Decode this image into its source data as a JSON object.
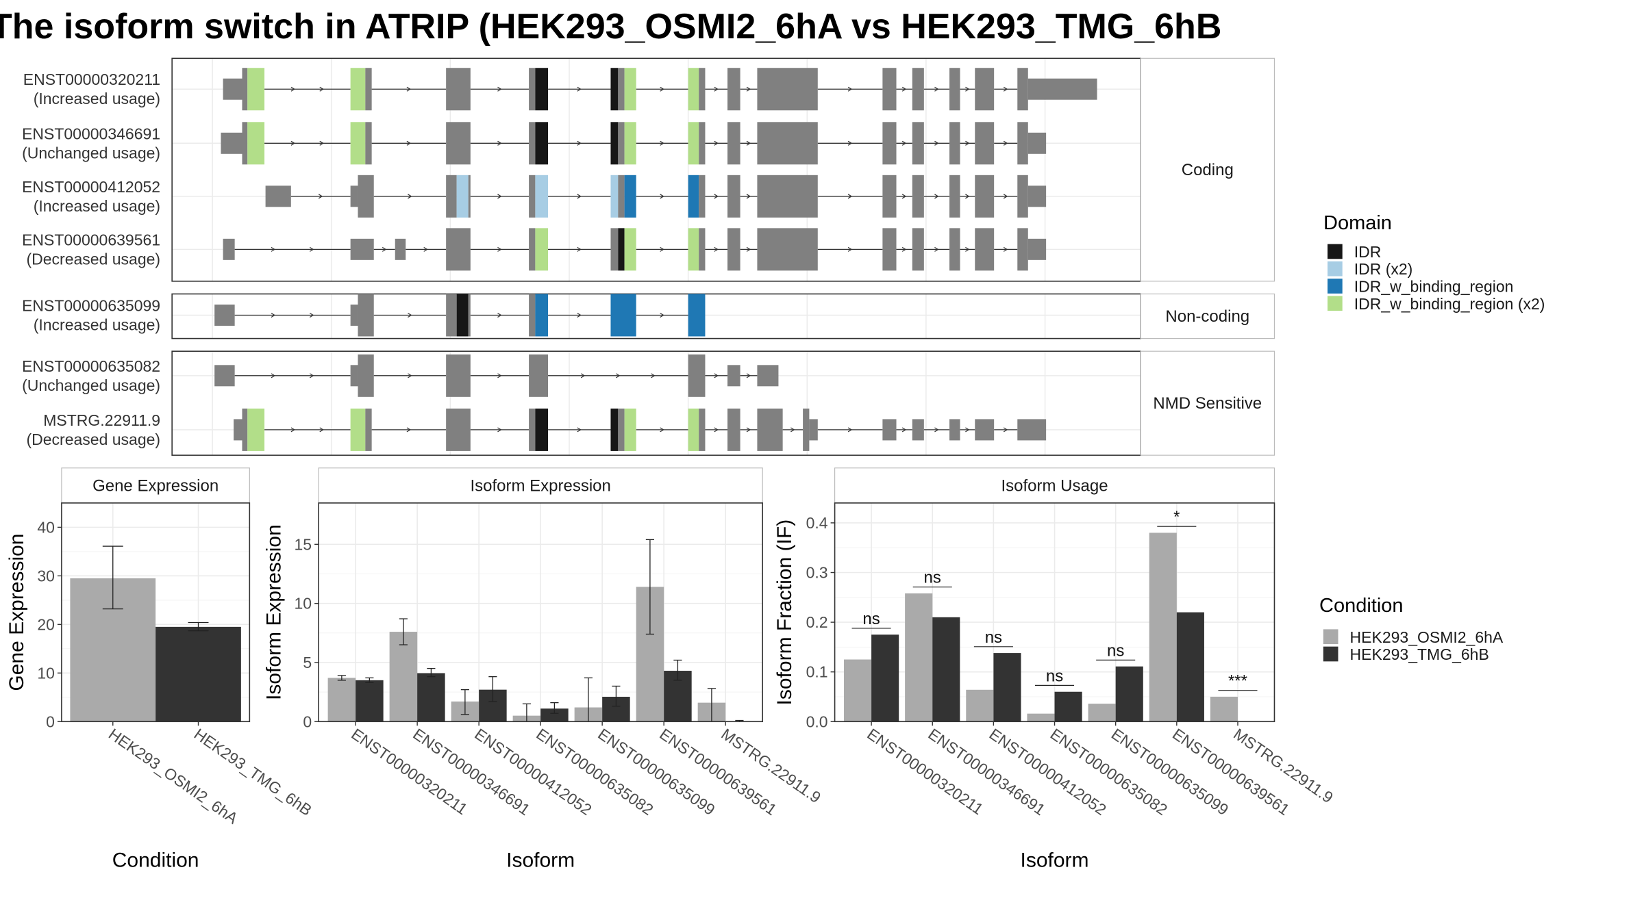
{
  "title": "The isoform switch in ATRIP (HEK293_OSMI2_6hA vs HEK293_TMG_6hB",
  "colors": {
    "exon": "#808080",
    "IDR": "#171717",
    "IDR_x2": "#a7cde4",
    "IDR_w_binding_region": "#1f78b4",
    "IDR_w_binding_region_x2": "#b2de89",
    "cond_A": "#aaaaaa",
    "cond_B": "#333333"
  },
  "structure": {
    "groups": [
      {
        "label": "Coding",
        "isoforms": [
          {
            "id": "ENST00000320211",
            "usage": "(Increased usage)",
            "exons": [
              [
                210,
                228,
                "utr"
              ],
              [
                228,
                233,
                "cds"
              ],
              [
                233,
                249,
                "IDR_w_binding_region_x2"
              ],
              [
                330,
                344,
                "IDR_w_binding_region_x2"
              ],
              [
                344,
                350,
                "cds"
              ],
              [
                420,
                443,
                "cds"
              ],
              [
                498,
                504,
                "cds"
              ],
              [
                504,
                516,
                "IDR"
              ],
              [
                575,
                582,
                "IDR"
              ],
              [
                582,
                588,
                "cds"
              ],
              [
                588,
                599,
                "IDR_w_binding_region_x2"
              ],
              [
                648,
                658,
                "IDR_w_binding_region_x2"
              ],
              [
                658,
                664,
                "cds"
              ],
              [
                685,
                697,
                "cds"
              ],
              [
                713,
                770,
                "cds"
              ],
              [
                831,
                844,
                "cds"
              ],
              [
                859,
                870,
                "cds"
              ],
              [
                894,
                904,
                "cds"
              ],
              [
                918,
                936,
                "cds"
              ],
              [
                958,
                968,
                "cds"
              ],
              [
                968,
                1033,
                "utr"
              ]
            ]
          },
          {
            "id": "ENST00000346691",
            "usage": "(Unchanged usage)",
            "exons": [
              [
                208,
                228,
                "utr"
              ],
              [
                228,
                233,
                "cds"
              ],
              [
                233,
                249,
                "IDR_w_binding_region_x2"
              ],
              [
                330,
                344,
                "IDR_w_binding_region_x2"
              ],
              [
                344,
                350,
                "cds"
              ],
              [
                420,
                443,
                "cds"
              ],
              [
                498,
                504,
                "cds"
              ],
              [
                504,
                516,
                "IDR"
              ],
              [
                575,
                582,
                "IDR"
              ],
              [
                582,
                588,
                "cds"
              ],
              [
                588,
                599,
                "IDR_w_binding_region_x2"
              ],
              [
                648,
                658,
                "IDR_w_binding_region_x2"
              ],
              [
                658,
                664,
                "cds"
              ],
              [
                685,
                697,
                "cds"
              ],
              [
                713,
                770,
                "cds"
              ],
              [
                831,
                844,
                "cds"
              ],
              [
                859,
                870,
                "cds"
              ],
              [
                894,
                904,
                "cds"
              ],
              [
                918,
                936,
                "cds"
              ],
              [
                958,
                968,
                "cds"
              ],
              [
                968,
                985,
                "utr"
              ]
            ]
          },
          {
            "id": "ENST00000412052",
            "usage": "(Increased usage)",
            "exons": [
              [
                250,
                274,
                "utr"
              ],
              [
                330,
                337,
                "utr"
              ],
              [
                337,
                352,
                "cds"
              ],
              [
                420,
                430,
                "cds"
              ],
              [
                430,
                441,
                "IDR_x2"
              ],
              [
                441,
                443,
                "cds"
              ],
              [
                498,
                504,
                "cds"
              ],
              [
                504,
                516,
                "IDR_x2"
              ],
              [
                575,
                582,
                "IDR_x2"
              ],
              [
                582,
                588,
                "cds"
              ],
              [
                588,
                599,
                "IDR_w_binding_region"
              ],
              [
                648,
                658,
                "IDR_w_binding_region"
              ],
              [
                658,
                664,
                "cds"
              ],
              [
                685,
                697,
                "cds"
              ],
              [
                713,
                770,
                "cds"
              ],
              [
                831,
                844,
                "cds"
              ],
              [
                859,
                870,
                "cds"
              ],
              [
                894,
                904,
                "cds"
              ],
              [
                918,
                936,
                "cds"
              ],
              [
                958,
                968,
                "cds"
              ],
              [
                968,
                985,
                "utr"
              ]
            ]
          },
          {
            "id": "ENST00000639561",
            "usage": "(Decreased usage)",
            "exons": [
              [
                210,
                221,
                "utr"
              ],
              [
                330,
                352,
                "utr"
              ],
              [
                372,
                382,
                "utr"
              ],
              [
                420,
                443,
                "cds"
              ],
              [
                498,
                504,
                "cds"
              ],
              [
                504,
                516,
                "IDR_w_binding_region_x2"
              ],
              [
                575,
                582,
                "cds"
              ],
              [
                582,
                588,
                "IDR"
              ],
              [
                588,
                599,
                "IDR_w_binding_region_x2"
              ],
              [
                648,
                658,
                "IDR_w_binding_region_x2"
              ],
              [
                658,
                664,
                "cds"
              ],
              [
                685,
                697,
                "cds"
              ],
              [
                713,
                770,
                "cds"
              ],
              [
                831,
                844,
                "cds"
              ],
              [
                859,
                870,
                "cds"
              ],
              [
                894,
                904,
                "cds"
              ],
              [
                918,
                936,
                "cds"
              ],
              [
                958,
                968,
                "cds"
              ],
              [
                968,
                985,
                "utr"
              ]
            ]
          }
        ]
      },
      {
        "label": "Non-coding",
        "isoforms": [
          {
            "id": "ENST00000635099",
            "usage": "(Increased usage)",
            "exons": [
              [
                202,
                221,
                "utr"
              ],
              [
                330,
                337,
                "utr"
              ],
              [
                337,
                352,
                "cds"
              ],
              [
                420,
                430,
                "cds"
              ],
              [
                430,
                441,
                "IDR"
              ],
              [
                441,
                443,
                "cds"
              ],
              [
                498,
                504,
                "cds"
              ],
              [
                504,
                516,
                "IDR_w_binding_region"
              ],
              [
                575,
                599,
                "IDR_w_binding_region"
              ],
              [
                648,
                664,
                "IDR_w_binding_region"
              ]
            ]
          }
        ]
      },
      {
        "label": "NMD Sensitive",
        "isoforms": [
          {
            "id": "ENST00000635082",
            "usage": "(Unchanged usage)",
            "exons": [
              [
                202,
                221,
                "utr"
              ],
              [
                330,
                337,
                "utr"
              ],
              [
                337,
                352,
                "cds"
              ],
              [
                420,
                443,
                "cds"
              ],
              [
                498,
                516,
                "cds"
              ],
              [
                648,
                664,
                "cds"
              ],
              [
                685,
                697,
                "utr"
              ],
              [
                713,
                733,
                "utr"
              ]
            ]
          },
          {
            "id": "MSTRG.22911.9",
            "usage": "(Decreased usage)",
            "exons": [
              [
                220,
                228,
                "utr"
              ],
              [
                228,
                233,
                "cds"
              ],
              [
                233,
                249,
                "IDR_w_binding_region_x2"
              ],
              [
                330,
                344,
                "IDR_w_binding_region_x2"
              ],
              [
                344,
                350,
                "cds"
              ],
              [
                420,
                443,
                "cds"
              ],
              [
                498,
                504,
                "cds"
              ],
              [
                504,
                516,
                "IDR"
              ],
              [
                575,
                582,
                "IDR"
              ],
              [
                582,
                588,
                "cds"
              ],
              [
                588,
                599,
                "IDR_w_binding_region_x2"
              ],
              [
                648,
                658,
                "IDR_w_binding_region_x2"
              ],
              [
                658,
                664,
                "cds"
              ],
              [
                685,
                697,
                "cds"
              ],
              [
                713,
                737,
                "cds"
              ],
              [
                756,
                762,
                "cds"
              ],
              [
                762,
                770,
                "utr"
              ],
              [
                831,
                844,
                "utr"
              ],
              [
                859,
                870,
                "utr"
              ],
              [
                894,
                904,
                "utr"
              ],
              [
                918,
                936,
                "utr"
              ],
              [
                958,
                985,
                "utr"
              ]
            ]
          }
        ]
      }
    ]
  },
  "legend_domain": {
    "title": "Domain",
    "items": [
      {
        "label": "IDR",
        "key": "IDR"
      },
      {
        "label": "IDR (x2)",
        "key": "IDR_x2"
      },
      {
        "label": "IDR_w_binding_region",
        "key": "IDR_w_binding_region"
      },
      {
        "label": "IDR_w_binding_region (x2)",
        "key": "IDR_w_binding_region_x2"
      }
    ]
  },
  "legend_condition": {
    "title": "Condition",
    "items": [
      "HEK293_OSMI2_6hA",
      "HEK293_TMG_6hB"
    ]
  },
  "chart_data": [
    {
      "type": "bar",
      "title": "Gene Expression",
      "xlabel": "Condition",
      "ylabel": "Gene Expression",
      "categories": [
        "HEK293_OSMI2_6hA",
        "HEK293_TMG_6hB"
      ],
      "values": [
        29.5,
        19.5
      ],
      "error_low": [
        23.2,
        18.7
      ],
      "error_high": [
        36.1,
        20.4
      ],
      "ylim": [
        0,
        45
      ],
      "yticks": [
        0,
        10,
        20,
        30,
        40
      ]
    },
    {
      "type": "bar",
      "title": "Isoform Expression",
      "xlabel": "Isoform",
      "ylabel": "Isoform Expression",
      "categories": [
        "ENST00000320211",
        "ENST00000346691",
        "ENST00000412052",
        "ENST00000635082",
        "ENST00000635099",
        "ENST00000639561",
        "MSTRG.22911.9"
      ],
      "series": [
        {
          "name": "HEK293_OSMI2_6hA",
          "values": [
            3.7,
            7.6,
            1.7,
            0.5,
            1.2,
            11.4,
            1.6
          ],
          "error_low": [
            3.5,
            6.5,
            0.6,
            0.0,
            0.0,
            7.4,
            0.0
          ],
          "error_high": [
            3.9,
            8.7,
            2.7,
            1.5,
            3.7,
            15.4,
            2.8
          ]
        },
        {
          "name": "HEK293_TMG_6hB",
          "values": [
            3.5,
            4.1,
            2.7,
            1.1,
            2.1,
            4.3,
            0.0
          ],
          "error_low": [
            3.3,
            3.8,
            1.7,
            0.7,
            1.3,
            3.5,
            0.0
          ],
          "error_high": [
            3.7,
            4.5,
            3.8,
            1.6,
            3.0,
            5.2,
            0.1
          ]
        }
      ],
      "ylim": [
        0,
        18.5
      ],
      "yticks": [
        0,
        5,
        10,
        15
      ]
    },
    {
      "type": "bar",
      "title": "Isoform Usage",
      "xlabel": "Isoform",
      "ylabel": "Isoform Fraction (IF)",
      "categories": [
        "ENST00000320211",
        "ENST00000346691",
        "ENST00000412052",
        "ENST00000635082",
        "ENST00000635099",
        "ENST00000639561",
        "MSTRG.22911.9"
      ],
      "series": [
        {
          "name": "HEK293_OSMI2_6hA",
          "values": [
            0.125,
            0.258,
            0.064,
            0.016,
            0.036,
            0.38,
            0.05
          ]
        },
        {
          "name": "HEK293_TMG_6hB",
          "values": [
            0.175,
            0.21,
            0.138,
            0.06,
            0.111,
            0.22,
            0.0
          ]
        }
      ],
      "annotations": [
        "ns",
        "ns",
        "ns",
        "ns",
        "ns",
        "*",
        "***"
      ],
      "ylim": [
        0,
        0.44
      ],
      "yticks": [
        0.0,
        0.1,
        0.2,
        0.3,
        0.4
      ]
    }
  ]
}
